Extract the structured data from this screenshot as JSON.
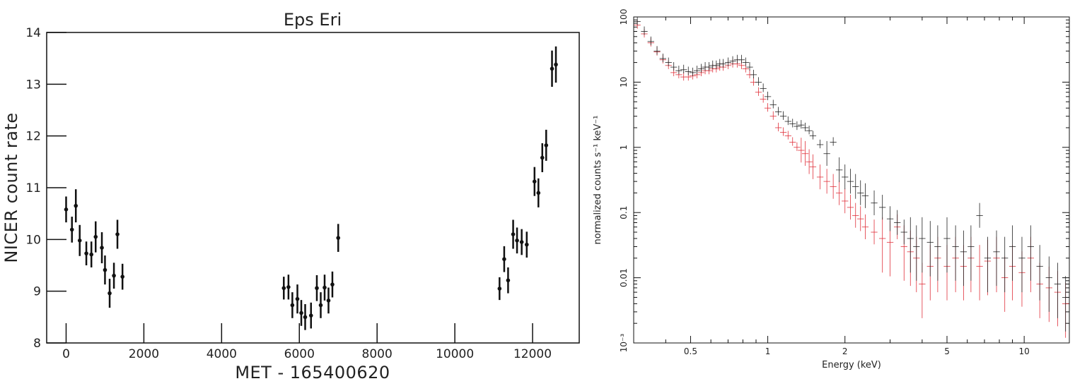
{
  "chart_data": [
    {
      "type": "scatter",
      "title": "Eps Eri",
      "xlabel": "MET - 165400620",
      "ylabel": "NICER count rate",
      "xlim": [
        -500,
        13200
      ],
      "ylim": [
        8,
        14
      ],
      "xticks": [
        "0",
        "2000",
        "4000",
        "6000",
        "8000",
        "10000",
        "12000"
      ],
      "yticks": [
        "8",
        "9",
        "10",
        "11",
        "12",
        "13",
        "14"
      ],
      "error_bars": true,
      "color": "#111111",
      "series": [
        {
          "points": [
            {
              "x": 0,
              "y": 10.58,
              "err": 0.25
            },
            {
              "x": 150,
              "y": 10.19,
              "err": 0.25
            },
            {
              "x": 250,
              "y": 10.65,
              "err": 0.32
            },
            {
              "x": 350,
              "y": 9.98,
              "err": 0.3
            },
            {
              "x": 520,
              "y": 9.73,
              "err": 0.23
            },
            {
              "x": 650,
              "y": 9.71,
              "err": 0.25
            },
            {
              "x": 760,
              "y": 10.05,
              "err": 0.3
            },
            {
              "x": 920,
              "y": 9.84,
              "err": 0.3
            },
            {
              "x": 1000,
              "y": 9.41,
              "err": 0.28
            },
            {
              "x": 1120,
              "y": 8.96,
              "err": 0.28
            },
            {
              "x": 1230,
              "y": 9.3,
              "err": 0.25
            },
            {
              "x": 1320,
              "y": 10.1,
              "err": 0.28
            },
            {
              "x": 1450,
              "y": 9.28,
              "err": 0.25
            },
            {
              "x": 5600,
              "y": 9.06,
              "err": 0.22
            },
            {
              "x": 5720,
              "y": 9.08,
              "err": 0.24
            },
            {
              "x": 5820,
              "y": 8.73,
              "err": 0.25
            },
            {
              "x": 5950,
              "y": 8.85,
              "err": 0.28
            },
            {
              "x": 6050,
              "y": 8.58,
              "err": 0.25
            },
            {
              "x": 6150,
              "y": 8.5,
              "err": 0.25
            },
            {
              "x": 6300,
              "y": 8.53,
              "err": 0.25
            },
            {
              "x": 6450,
              "y": 9.06,
              "err": 0.25
            },
            {
              "x": 6550,
              "y": 8.73,
              "err": 0.25
            },
            {
              "x": 6650,
              "y": 9.07,
              "err": 0.25
            },
            {
              "x": 6750,
              "y": 8.82,
              "err": 0.25
            },
            {
              "x": 6850,
              "y": 9.13,
              "err": 0.25
            },
            {
              "x": 7000,
              "y": 10.03,
              "err": 0.27
            },
            {
              "x": 11150,
              "y": 9.05,
              "err": 0.22
            },
            {
              "x": 11270,
              "y": 9.62,
              "err": 0.25
            },
            {
              "x": 11370,
              "y": 9.21,
              "err": 0.25
            },
            {
              "x": 11500,
              "y": 10.1,
              "err": 0.28
            },
            {
              "x": 11600,
              "y": 9.98,
              "err": 0.25
            },
            {
              "x": 11720,
              "y": 9.95,
              "err": 0.25
            },
            {
              "x": 11850,
              "y": 9.9,
              "err": 0.25
            },
            {
              "x": 12050,
              "y": 11.12,
              "err": 0.28
            },
            {
              "x": 12150,
              "y": 10.9,
              "err": 0.28
            },
            {
              "x": 12250,
              "y": 11.58,
              "err": 0.28
            },
            {
              "x": 12350,
              "y": 11.82,
              "err": 0.3
            },
            {
              "x": 12500,
              "y": 13.3,
              "err": 0.35
            },
            {
              "x": 12600,
              "y": 13.38,
              "err": 0.35
            }
          ]
        }
      ]
    },
    {
      "type": "scatter",
      "title": "",
      "xlabel": "Energy (keV)",
      "ylabel": "normalized counts s⁻¹ keV⁻¹",
      "xscale": "log",
      "yscale": "log",
      "xlim": [
        0.3,
        15
      ],
      "ylim": [
        0.001,
        100
      ],
      "xticks": [
        "0.5",
        "1",
        "2",
        "5",
        "10"
      ],
      "xtick_values": [
        0.5,
        1,
        2,
        5,
        10
      ],
      "yticks": [
        "10⁻³",
        "0.01",
        "0.1",
        "1",
        "10",
        "100"
      ],
      "ytick_values": [
        0.001,
        0.01,
        0.1,
        1,
        10,
        100
      ],
      "error_bars": true,
      "series": [
        {
          "color": "#222222",
          "points": [
            [
              0.31,
              85
            ],
            [
              0.33,
              60
            ],
            [
              0.35,
              42
            ],
            [
              0.37,
              30
            ],
            [
              0.39,
              23
            ],
            [
              0.41,
              20
            ],
            [
              0.43,
              17
            ],
            [
              0.45,
              15
            ],
            [
              0.47,
              15.5
            ],
            [
              0.49,
              14.5
            ],
            [
              0.51,
              14
            ],
            [
              0.53,
              15
            ],
            [
              0.55,
              16
            ],
            [
              0.57,
              17
            ],
            [
              0.59,
              17
            ],
            [
              0.61,
              18
            ],
            [
              0.63,
              18
            ],
            [
              0.65,
              19
            ],
            [
              0.67,
              19
            ],
            [
              0.7,
              20
            ],
            [
              0.73,
              21
            ],
            [
              0.76,
              22
            ],
            [
              0.79,
              22
            ],
            [
              0.82,
              20
            ],
            [
              0.85,
              17
            ],
            [
              0.88,
              13
            ],
            [
              0.92,
              10
            ],
            [
              0.96,
              8
            ],
            [
              1.0,
              6
            ],
            [
              1.05,
              4.5
            ],
            [
              1.1,
              3.5
            ],
            [
              1.15,
              3
            ],
            [
              1.2,
              2.5
            ],
            [
              1.25,
              2.3
            ],
            [
              1.3,
              2.1
            ],
            [
              1.35,
              2.2
            ],
            [
              1.4,
              2.0
            ],
            [
              1.45,
              1.8
            ],
            [
              1.5,
              1.5
            ],
            [
              1.6,
              1.1
            ],
            [
              1.7,
              0.8
            ],
            [
              1.8,
              1.2
            ],
            [
              1.9,
              0.45
            ],
            [
              2.0,
              0.35
            ],
            [
              2.1,
              0.3
            ],
            [
              2.2,
              0.25
            ],
            [
              2.3,
              0.2
            ],
            [
              2.4,
              0.18
            ],
            [
              2.6,
              0.14
            ],
            [
              2.8,
              0.12
            ],
            [
              3.0,
              0.08
            ],
            [
              3.2,
              0.07
            ],
            [
              3.4,
              0.05
            ],
            [
              3.6,
              0.04
            ],
            [
              3.8,
              0.03
            ],
            [
              4.0,
              0.04
            ],
            [
              4.3,
              0.035
            ],
            [
              4.6,
              0.03
            ],
            [
              5.0,
              0.04
            ],
            [
              5.4,
              0.03
            ],
            [
              5.8,
              0.025
            ],
            [
              6.2,
              0.03
            ],
            [
              6.7,
              0.09
            ],
            [
              7.2,
              0.02
            ],
            [
              7.8,
              0.025
            ],
            [
              8.4,
              0.02
            ],
            [
              9.0,
              0.03
            ],
            [
              9.8,
              0.02
            ],
            [
              10.6,
              0.03
            ],
            [
              11.5,
              0.015
            ],
            [
              12.5,
              0.01
            ],
            [
              13.5,
              0.008
            ],
            [
              14.5,
              0.005
            ]
          ]
        },
        {
          "color": "#e0303a",
          "points": [
            [
              0.31,
              75
            ],
            [
              0.33,
              55
            ],
            [
              0.35,
              40
            ],
            [
              0.37,
              29
            ],
            [
              0.39,
              22
            ],
            [
              0.41,
              18
            ],
            [
              0.43,
              14
            ],
            [
              0.45,
              13
            ],
            [
              0.47,
              12
            ],
            [
              0.49,
              12
            ],
            [
              0.51,
              12.5
            ],
            [
              0.53,
              13
            ],
            [
              0.55,
              14
            ],
            [
              0.57,
              15
            ],
            [
              0.59,
              15
            ],
            [
              0.61,
              16
            ],
            [
              0.63,
              16
            ],
            [
              0.65,
              17
            ],
            [
              0.67,
              17
            ],
            [
              0.7,
              18
            ],
            [
              0.73,
              19
            ],
            [
              0.76,
              19
            ],
            [
              0.79,
              18
            ],
            [
              0.82,
              16
            ],
            [
              0.85,
              13
            ],
            [
              0.88,
              10
            ],
            [
              0.92,
              7
            ],
            [
              0.96,
              5.5
            ],
            [
              1.0,
              4
            ],
            [
              1.05,
              3
            ],
            [
              1.1,
              2
            ],
            [
              1.15,
              1.7
            ],
            [
              1.2,
              1.5
            ],
            [
              1.25,
              1.2
            ],
            [
              1.3,
              1.0
            ],
            [
              1.35,
              0.9
            ],
            [
              1.4,
              0.8
            ],
            [
              1.45,
              0.6
            ],
            [
              1.5,
              0.5
            ],
            [
              1.6,
              0.35
            ],
            [
              1.7,
              0.3
            ],
            [
              1.8,
              0.25
            ],
            [
              1.9,
              0.2
            ],
            [
              2.0,
              0.15
            ],
            [
              2.1,
              0.12
            ],
            [
              2.2,
              0.09
            ],
            [
              2.3,
              0.08
            ],
            [
              2.4,
              0.06
            ],
            [
              2.6,
              0.05
            ],
            [
              2.8,
              0.04
            ],
            [
              3.0,
              0.035
            ],
            [
              3.2,
              0.06
            ],
            [
              3.4,
              0.03
            ],
            [
              3.6,
              0.025
            ],
            [
              3.8,
              0.02
            ],
            [
              4.0,
              0.008
            ],
            [
              4.3,
              0.015
            ],
            [
              4.6,
              0.02
            ],
            [
              5.0,
              0.015
            ],
            [
              5.4,
              0.02
            ],
            [
              5.8,
              0.015
            ],
            [
              6.2,
              0.02
            ],
            [
              6.7,
              0.015
            ],
            [
              7.2,
              0.018
            ],
            [
              7.8,
              0.02
            ],
            [
              8.4,
              0.01
            ],
            [
              9.0,
              0.015
            ],
            [
              9.8,
              0.012
            ],
            [
              10.6,
              0.02
            ],
            [
              11.5,
              0.008
            ],
            [
              12.5,
              0.007
            ],
            [
              13.5,
              0.006
            ],
            [
              14.5,
              0.004
            ]
          ]
        }
      ]
    }
  ]
}
